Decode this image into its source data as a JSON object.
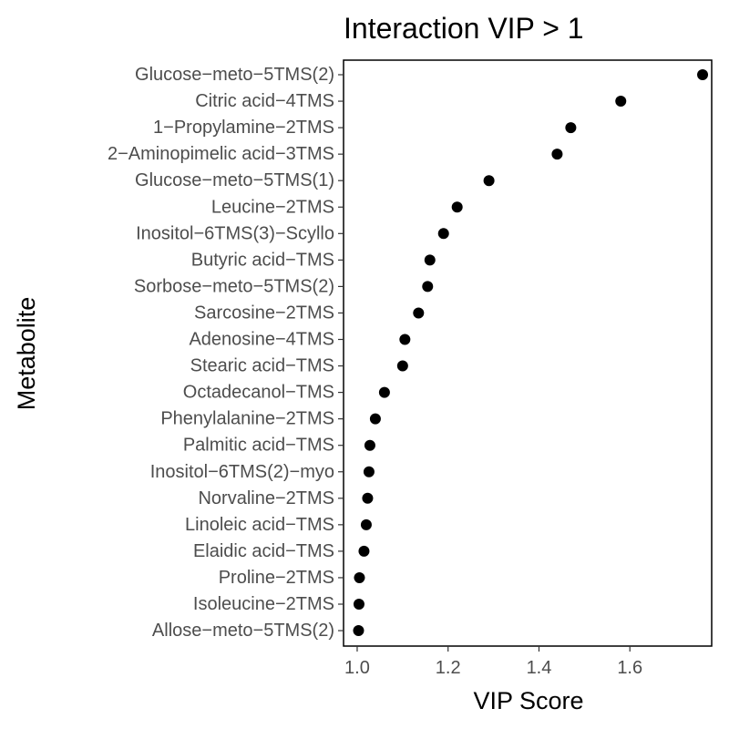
{
  "chart_data": {
    "type": "scatter",
    "title": "Interaction VIP > 1",
    "xlabel": "VIP Score",
    "ylabel": "Metabolite",
    "xlim": [
      0.97,
      1.78
    ],
    "xticks": [
      1.0,
      1.2,
      1.4,
      1.6
    ],
    "xtick_labels": [
      "1.0",
      "1.2",
      "1.4",
      "1.6"
    ],
    "grid": false,
    "legend": "none",
    "point_color": "#000000",
    "categories": [
      "Glucose−meto−5TMS(2)",
      "Citric acid−4TMS",
      "1−Propylamine−2TMS",
      "2−Aminopimelic acid−3TMS",
      "Glucose−meto−5TMS(1)",
      "Leucine−2TMS",
      "Inositol−6TMS(3)−Scyllo",
      "Butyric acid−TMS",
      "Sorbose−meto−5TMS(2)",
      "Sarcosine−2TMS",
      "Adenosine−4TMS",
      "Stearic acid−TMS",
      "Octadecanol−TMS",
      "Phenylalanine−2TMS",
      "Palmitic acid−TMS",
      "Inositol−6TMS(2)−myo",
      "Norvaline−2TMS",
      "Linoleic acid−TMS",
      "Elaidic acid−TMS",
      "Proline−2TMS",
      "Isoleucine−2TMS",
      "Allose−meto−5TMS(2)"
    ],
    "values": [
      1.76,
      1.58,
      1.47,
      1.44,
      1.29,
      1.22,
      1.19,
      1.16,
      1.155,
      1.135,
      1.105,
      1.1,
      1.06,
      1.04,
      1.028,
      1.026,
      1.023,
      1.02,
      1.015,
      1.005,
      1.004,
      1.003
    ]
  }
}
